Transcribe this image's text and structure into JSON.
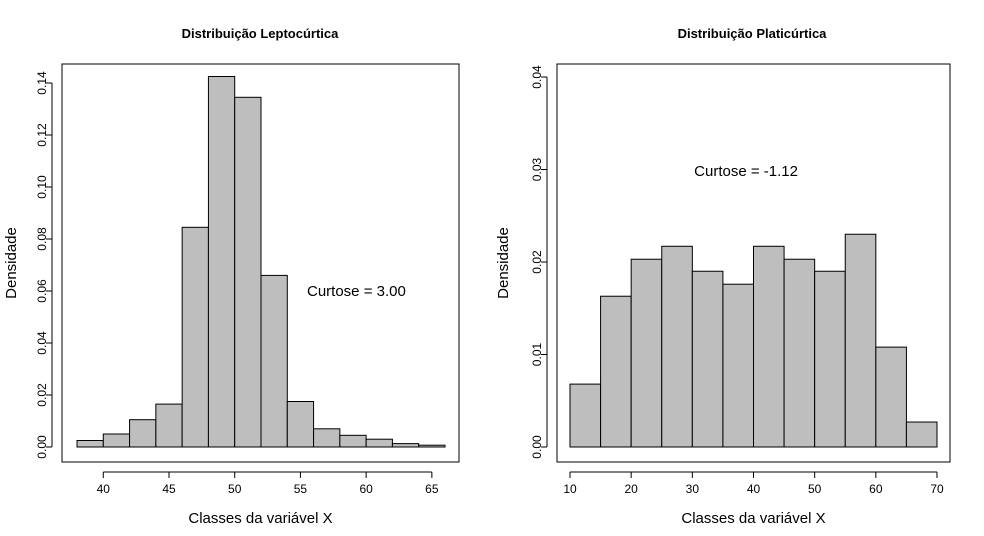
{
  "chart_data": [
    {
      "type": "bar",
      "title": "Distribuição Leptocúrtica",
      "xlabel": "Classes da variável X",
      "ylabel": "Densidade",
      "annotation": {
        "text": "Curtose = 3.00",
        "x": 55.5,
        "y": 0.058
      },
      "bin_edges": [
        38,
        40,
        42,
        44,
        46,
        48,
        50,
        52,
        54,
        56,
        58,
        60,
        62,
        64,
        66
      ],
      "values": [
        0.0025,
        0.005,
        0.0105,
        0.0165,
        0.0845,
        0.1425,
        0.1345,
        0.066,
        0.0175,
        0.007,
        0.0045,
        0.003,
        0.0013,
        0.0007
      ],
      "xlim": [
        38,
        66
      ],
      "ylim": [
        0,
        0.145
      ],
      "xticks": [
        "40",
        "45",
        "50",
        "55",
        "60",
        "65"
      ],
      "yticks": [
        "0.00",
        "0.02",
        "0.04",
        "0.06",
        "0.08",
        "0.10",
        "0.12",
        "0.14"
      ],
      "bar_color": "#bebebe",
      "grid": false
    },
    {
      "type": "bar",
      "title": "Distribuição Platicúrtica",
      "xlabel": "Classes da variável X",
      "ylabel": "Densidade",
      "annotation": {
        "text": "Curtose = -1.12",
        "x": 30.3,
        "y": 0.0293
      },
      "bin_edges": [
        10,
        15,
        20,
        25,
        30,
        35,
        40,
        45,
        50,
        55,
        60,
        65,
        70
      ],
      "values": [
        0.0068,
        0.0163,
        0.0203,
        0.0217,
        0.019,
        0.0176,
        0.0217,
        0.0203,
        0.019,
        0.023,
        0.0108,
        0.0027
      ],
      "xlim": [
        10,
        70
      ],
      "ylim": [
        0,
        0.04
      ],
      "xticks": [
        "10",
        "20",
        "30",
        "40",
        "50",
        "60",
        "70"
      ],
      "yticks": [
        "0.00",
        "0.01",
        "0.02",
        "0.03",
        "0.04"
      ],
      "bar_color": "#bebebe",
      "grid": false
    }
  ]
}
